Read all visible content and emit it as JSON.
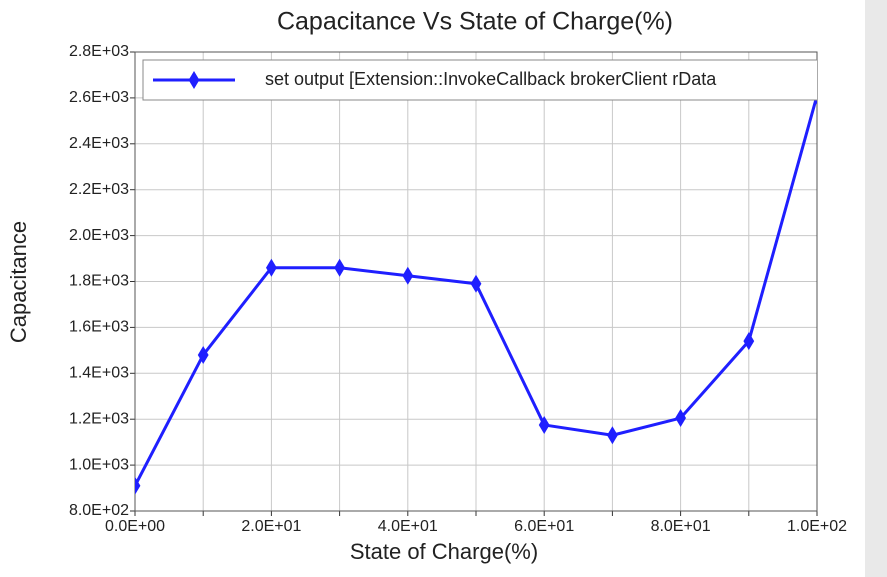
{
  "chart_data": {
    "type": "line",
    "title": "Capacitance Vs State of Charge(%)",
    "x_label": "State of Charge(%)",
    "y_label": "Capacitance",
    "x": [
      0,
      10,
      20,
      30,
      40,
      50,
      60,
      70,
      80,
      90,
      100
    ],
    "series": [
      {
        "name": "set output [Extension::InvokeCallback brokerClient rData",
        "color": "#1f1fff",
        "values": [
          910,
          1480,
          1860,
          1860,
          1825,
          1790,
          1175,
          1130,
          1205,
          1540,
          2610
        ]
      }
    ],
    "xlim": [
      0,
      100
    ],
    "xticks": [
      {
        "value": 0,
        "label": "0.0E+00"
      },
      {
        "value": 20,
        "label": "2.0E+01"
      },
      {
        "value": 40,
        "label": "4.0E+01"
      },
      {
        "value": 60,
        "label": "6.0E+01"
      },
      {
        "value": 80,
        "label": "8.0E+01"
      },
      {
        "value": 100,
        "label": "1.0E+02"
      }
    ],
    "xminorticks": [
      10,
      30,
      50,
      70,
      90
    ],
    "ylim": [
      800,
      2800
    ],
    "yticks": [
      {
        "value": 800,
        "label": "8.0E+02"
      },
      {
        "value": 1000,
        "label": "1.0E+03"
      },
      {
        "value": 1200,
        "label": "1.2E+03"
      },
      {
        "value": 1400,
        "label": "1.4E+03"
      },
      {
        "value": 1600,
        "label": "1.6E+03"
      },
      {
        "value": 1800,
        "label": "1.8E+03"
      },
      {
        "value": 2000,
        "label": "2.0E+03"
      },
      {
        "value": 2200,
        "label": "2.2E+03"
      },
      {
        "value": 2400,
        "label": "2.4E+03"
      },
      {
        "value": 2600,
        "label": "2.6E+03"
      },
      {
        "value": 2800,
        "label": "2.8E+03"
      }
    ],
    "grid": true,
    "legend": "top"
  }
}
